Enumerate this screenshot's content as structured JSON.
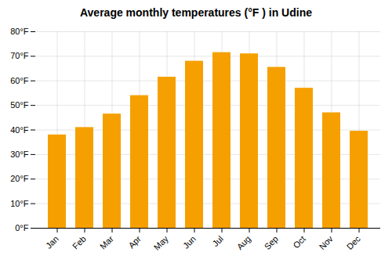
{
  "chart_data": {
    "type": "bar",
    "title": "Average monthly temperatures (°F ) in Udine",
    "categories": [
      "Jan",
      "Feb",
      "Mar",
      "Apr",
      "May",
      "Jun",
      "Jul",
      "Aug",
      "Sep",
      "Oct",
      "Nov",
      "Dec"
    ],
    "values": [
      38,
      41,
      46.5,
      54,
      61.5,
      68,
      71.5,
      71,
      65.5,
      57,
      47,
      39.5
    ],
    "color": "#F5A000",
    "ylim": [
      0,
      80
    ],
    "yticks": [
      {
        "value": 0,
        "label": "0°F"
      },
      {
        "value": 10,
        "label": "10°F"
      },
      {
        "value": 20,
        "label": "20°F"
      },
      {
        "value": 30,
        "label": "30°F"
      },
      {
        "value": 40,
        "label": "40°F"
      },
      {
        "value": 50,
        "label": "50°F"
      },
      {
        "value": 60,
        "label": "60°F"
      },
      {
        "value": 70,
        "label": "70°F"
      },
      {
        "value": 80,
        "label": "80°F"
      }
    ],
    "grid": true
  }
}
